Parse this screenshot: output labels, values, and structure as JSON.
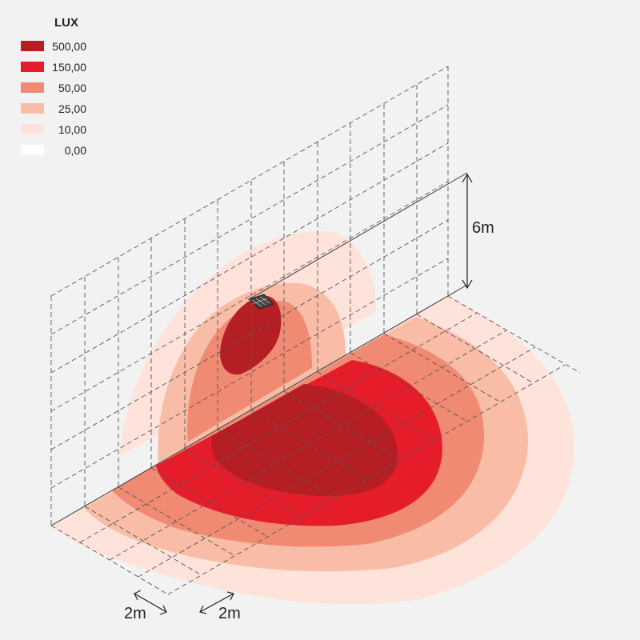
{
  "legend": {
    "title": "LUX",
    "items": [
      {
        "label": "500,00",
        "color": "#b51f24"
      },
      {
        "label": "150,00",
        "color": "#e51d2a"
      },
      {
        "label": "50,00",
        "color": "#f08a73"
      },
      {
        "label": "25,00",
        "color": "#f8bca7"
      },
      {
        "label": "10,00",
        "color": "#fde3da"
      },
      {
        "label": "0,00",
        "color": "#ffffff"
      }
    ]
  },
  "dimensions": {
    "height": "6m",
    "grid_left": "2m",
    "grid_right": "2m"
  }
}
